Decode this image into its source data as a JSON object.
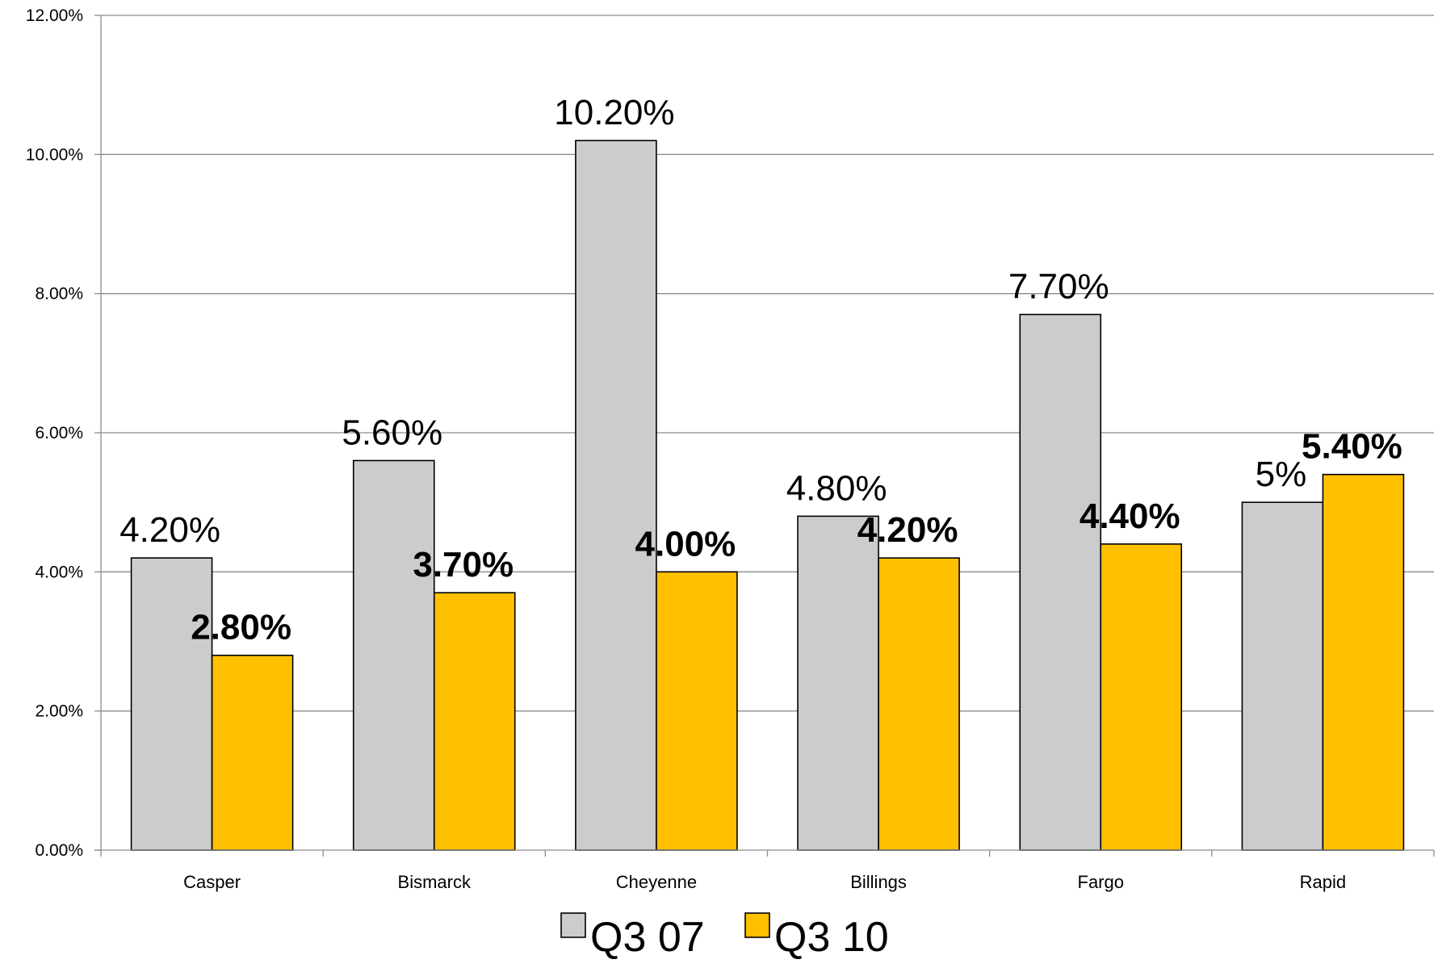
{
  "chart_data": {
    "type": "bar",
    "title": "",
    "xlabel": "",
    "ylabel": "",
    "categories": [
      "Casper",
      "Bismarck",
      "Cheyenne",
      "Billings",
      "Fargo",
      "Rapid"
    ],
    "series": [
      {
        "name": "Q3 07",
        "color": "#cccccc",
        "values": [
          4.2,
          5.6,
          10.2,
          4.8,
          7.7,
          5.0
        ],
        "labels": [
          "4.20%",
          "5.60%",
          "10.20%",
          "4.80%",
          "7.70%",
          "5%"
        ],
        "label_bold": false
      },
      {
        "name": "Q3 10",
        "color": "#ffc000",
        "values": [
          2.8,
          3.7,
          4.0,
          4.2,
          4.4,
          5.4
        ],
        "labels": [
          "2.80%",
          "3.70%",
          "4.00%",
          "4.20%",
          "4.40%",
          "5.40%"
        ],
        "label_bold": true
      }
    ],
    "ylim": [
      0,
      12
    ],
    "yticks": [
      0,
      2,
      4,
      6,
      8,
      10,
      12
    ],
    "ytick_labels": [
      "0.00%",
      "2.00%",
      "4.00%",
      "6.00%",
      "8.00%",
      "10.00%",
      "12.00%"
    ],
    "grid": true,
    "legend_position": "bottom-center"
  }
}
